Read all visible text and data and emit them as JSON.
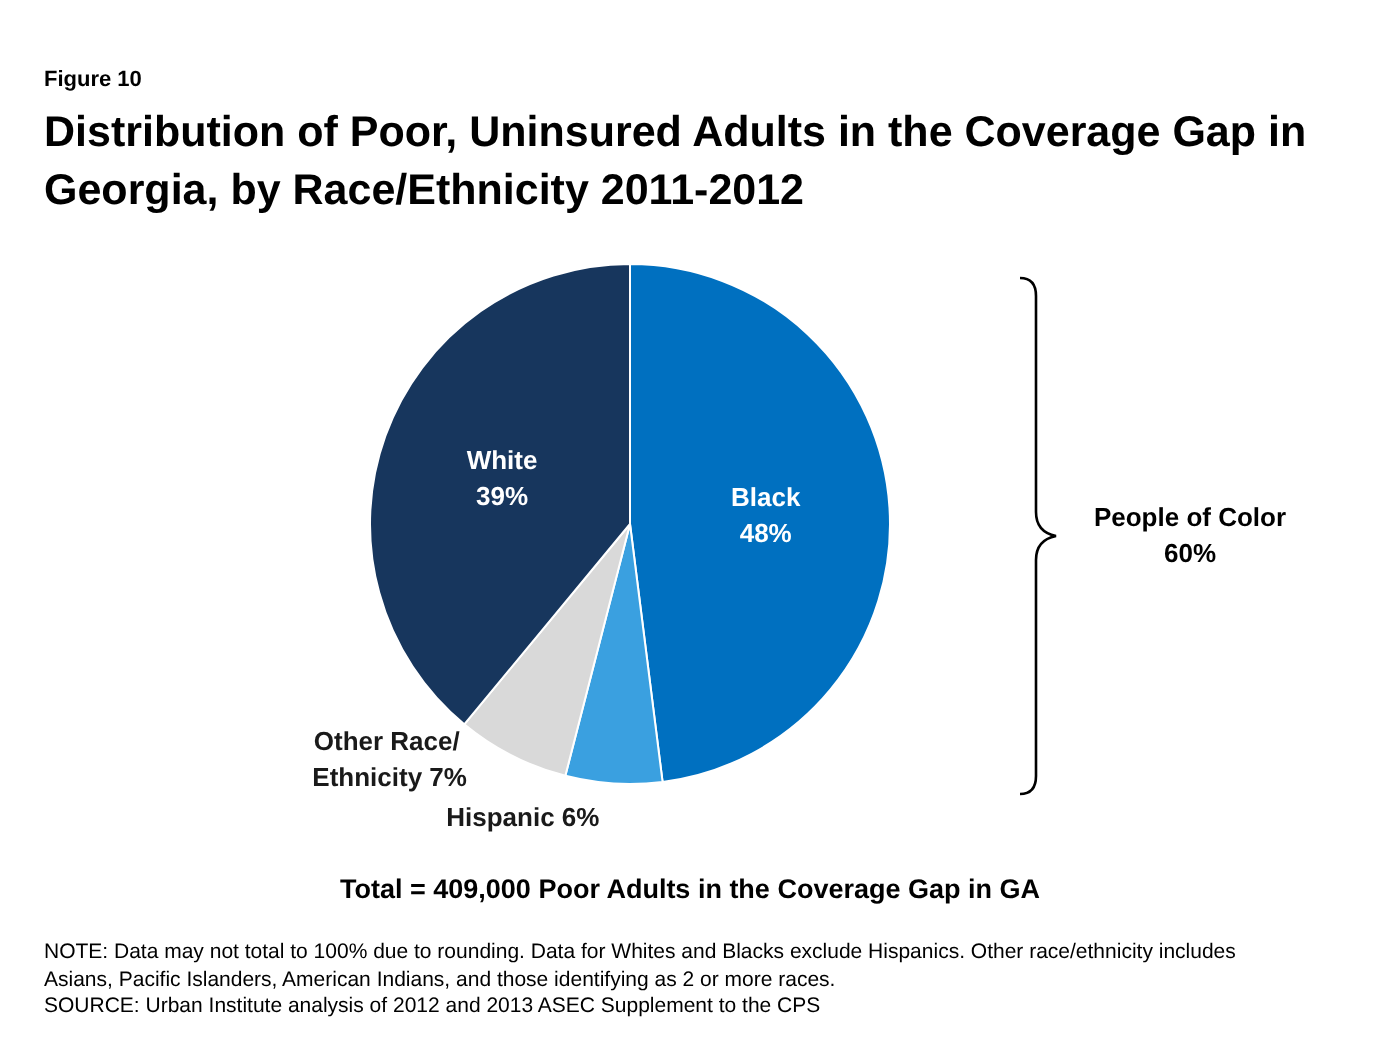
{
  "chart_data": {
    "type": "pie",
    "subtitle": "Figure 10",
    "title": "Distribution of Poor, Uninsured Adults in the Coverage Gap in Georgia, by Race/Ethnicity 2011-2012",
    "categories": [
      "Black",
      "Hispanic",
      "Other Race/ Ethnicity",
      "White"
    ],
    "values": [
      48,
      6,
      7,
      39
    ],
    "colors": [
      "#0070c0",
      "#3aa0e0",
      "#d9d9d9",
      "#17365d"
    ],
    "value_labels": [
      "48%",
      "6%",
      "7%",
      "39%"
    ],
    "legend": false,
    "annotations": [
      "People of Color 60%",
      "Total = 409,000 Poor Adults in the Coverage Gap in GA",
      "NOTE: Data may not total to 100% due to rounding. Data for Whites and Blacks exclude Hispanics. Other race/ethnicity includes Asians, Pacific Islanders, American Indians, and those identifying as 2 or more races.",
      "SOURCE: Urban Institute analysis of 2012 and 2013 ASEC Supplement to the CPS"
    ]
  }
}
